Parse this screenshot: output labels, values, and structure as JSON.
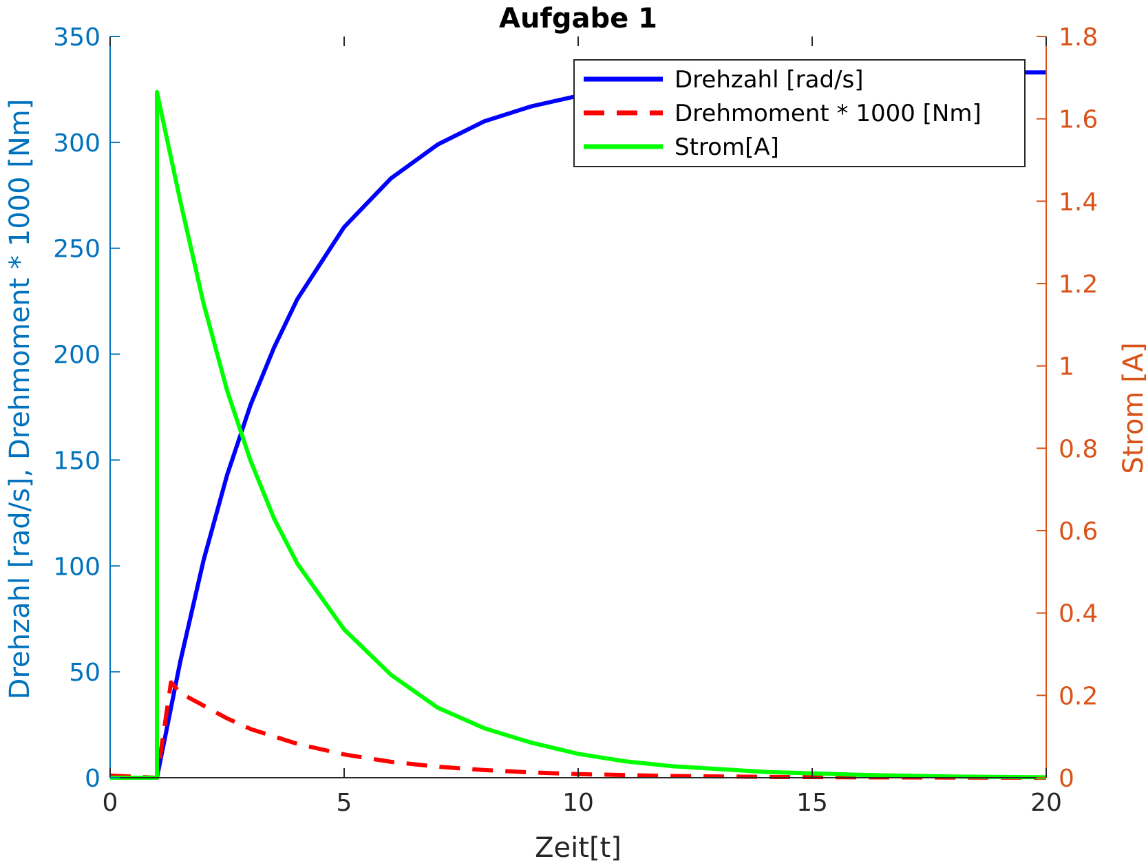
{
  "chart_data": {
    "type": "line",
    "title": "Aufgabe 1",
    "xlabel": "Zeit[t]",
    "ylabel_left": "Drehzahl [rad/s], Drehmoment * 1000 [Nm]",
    "ylabel_right": "Strom [A]",
    "xlim": [
      0,
      20
    ],
    "ylim_left": [
      0,
      350
    ],
    "ylim_right": [
      0,
      1.8
    ],
    "xticks": [
      0,
      5,
      10,
      15,
      20
    ],
    "xtick_labels": [
      "0",
      "5",
      "10",
      "15",
      "20"
    ],
    "yticks_left": [
      0,
      50,
      100,
      150,
      200,
      250,
      300,
      350
    ],
    "ytick_labels_left": [
      "0",
      "50",
      "100",
      "150",
      "200",
      "250",
      "300",
      "350"
    ],
    "yticks_right": [
      0,
      0.2,
      0.4,
      0.6,
      0.8,
      1,
      1.2,
      1.4,
      1.6,
      1.8
    ],
    "ytick_labels_right": [
      "0",
      "0.2",
      "0.4",
      "0.6",
      "0.8",
      "1",
      "1.2",
      "1.4",
      "1.6",
      "1.8"
    ],
    "grid": false,
    "legend_position": "top-right",
    "colors": {
      "left_axis": "#0072BD",
      "right_axis": "#D95319",
      "x_axis": "#262626"
    },
    "series": [
      {
        "name": "Drehzahl [rad/s]",
        "axis": "left",
        "color": "#0000FF",
        "style": "solid",
        "x": [
          0,
          1,
          1.5,
          2,
          2.5,
          3,
          3.5,
          4,
          5,
          6,
          7,
          8,
          9,
          10,
          11,
          12,
          13,
          14,
          15,
          16,
          17,
          18,
          19,
          20
        ],
        "y": [
          0,
          0,
          55,
          103,
          143,
          176,
          203,
          226,
          260,
          283,
          299,
          310,
          317,
          322,
          325,
          328,
          329,
          330,
          331,
          332,
          332,
          332,
          333,
          333
        ]
      },
      {
        "name": "Drehmoment * 1000 [Nm]",
        "axis": "left",
        "color": "#FF0000",
        "style": "dashed",
        "x": [
          0,
          1,
          1.3,
          1.5,
          2,
          2.5,
          3,
          4,
          5,
          6,
          7,
          8,
          9,
          10,
          12,
          14,
          16,
          18,
          20
        ],
        "y": [
          1,
          0,
          45,
          40,
          34,
          28,
          23,
          16,
          11,
          7.5,
          5.2,
          3.6,
          2.5,
          1.7,
          0.8,
          0.4,
          0.2,
          0.1,
          0
        ]
      },
      {
        "name": "Strom[A]",
        "axis": "right",
        "color": "#00FF00",
        "style": "solid",
        "x": [
          0,
          1,
          1,
          1.5,
          2,
          2.5,
          3,
          3.5,
          4,
          5,
          6,
          7,
          8,
          9,
          10,
          11,
          12,
          14,
          16,
          18,
          20
        ],
        "y": [
          0,
          0,
          1.665,
          1.4,
          1.15,
          0.94,
          0.77,
          0.63,
          0.52,
          0.36,
          0.25,
          0.17,
          0.12,
          0.085,
          0.058,
          0.04,
          0.028,
          0.014,
          0.007,
          0.003,
          0.001
        ]
      }
    ]
  }
}
